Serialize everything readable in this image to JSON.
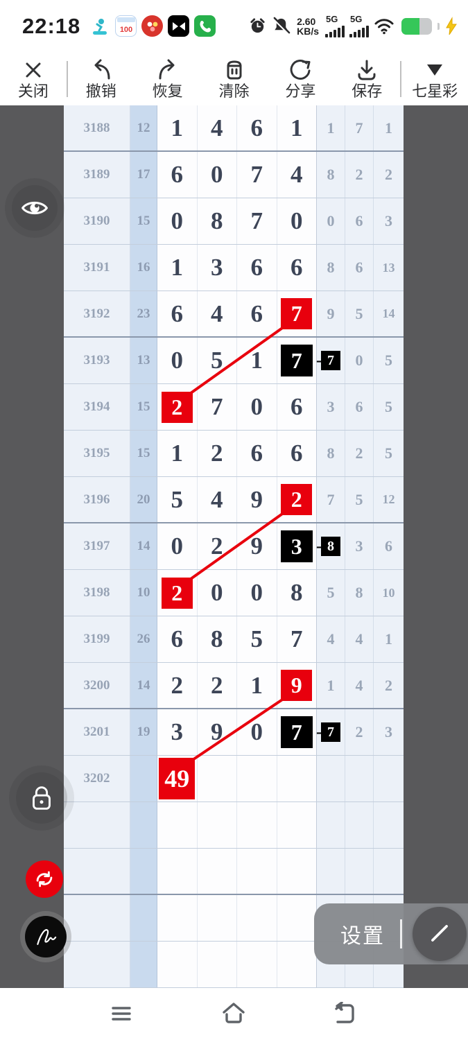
{
  "status_bar": {
    "time": "22:18",
    "speed_value": "2.60",
    "speed_unit": "KB/s",
    "net1": "5G",
    "net2": "5G",
    "notification_icons": [
      "diving-app-icon",
      "calendar-100-icon",
      "red-social-app-icon",
      "capcut-icon",
      "phone-app-icon"
    ],
    "system_icons": [
      "alarm-icon",
      "mute-icon",
      "wifi-icon",
      "battery-icon",
      "charging-bolt-icon"
    ]
  },
  "toolbar": {
    "close": "关闭",
    "undo": "撤销",
    "redo": "恢复",
    "clear": "清除",
    "share": "分享",
    "save": "保存",
    "lottery": "七星彩"
  },
  "floating": {
    "settings_label": "设置"
  },
  "colors": {
    "accent_red": "#e8000d",
    "highlight_black": "#000000",
    "surround_grey": "#59595b",
    "col_blue_light": "#ecf1f8",
    "col_blue_mid": "#c9daee",
    "digit_dark": "#3d4557",
    "digit_grey": "#9aa6b7"
  },
  "table": {
    "group_ends": [
      0,
      4,
      8,
      12,
      16
    ],
    "rows": [
      {
        "period": "3188",
        "sum": "12",
        "main": [
          "1",
          "4",
          "6",
          "1"
        ],
        "right": [
          "1",
          "7",
          "1"
        ]
      },
      {
        "period": "3189",
        "sum": "17",
        "main": [
          "6",
          "0",
          "7",
          "4"
        ],
        "right": [
          "8",
          "2",
          "2"
        ]
      },
      {
        "period": "3190",
        "sum": "15",
        "main": [
          "0",
          "8",
          "7",
          "0"
        ],
        "right": [
          "0",
          "6",
          "3"
        ]
      },
      {
        "period": "3191",
        "sum": "16",
        "main": [
          "1",
          "3",
          "6",
          "6"
        ],
        "right": [
          "8",
          "6",
          "13"
        ]
      },
      {
        "period": "3192",
        "sum": "23",
        "main": [
          "6",
          "4",
          "6",
          {
            "v": "7",
            "hl": "red"
          }
        ],
        "right": [
          "9",
          "5",
          "14"
        ]
      },
      {
        "period": "3193",
        "sum": "13",
        "main": [
          "0",
          "5",
          "1",
          {
            "v": "7",
            "hl": "black",
            "joiner": "-"
          }
        ],
        "right": [
          {
            "v": "7",
            "hl": "black-small"
          },
          "0",
          "5"
        ]
      },
      {
        "period": "3194",
        "sum": "15",
        "main": [
          {
            "v": "2",
            "hl": "red"
          },
          "7",
          "0",
          "6"
        ],
        "right": [
          "3",
          "6",
          "5"
        ]
      },
      {
        "period": "3195",
        "sum": "15",
        "main": [
          "1",
          "2",
          "6",
          "6"
        ],
        "right": [
          "8",
          "2",
          "5"
        ]
      },
      {
        "period": "3196",
        "sum": "20",
        "main": [
          "5",
          "4",
          "9",
          {
            "v": "2",
            "hl": "red"
          }
        ],
        "right": [
          "7",
          "5",
          "12"
        ]
      },
      {
        "period": "3197",
        "sum": "14",
        "main": [
          "0",
          "2",
          "9",
          {
            "v": "3",
            "hl": "black",
            "joiner": "-"
          }
        ],
        "right": [
          {
            "v": "8",
            "hl": "black-small"
          },
          "3",
          "6"
        ]
      },
      {
        "period": "3198",
        "sum": "10",
        "main": [
          {
            "v": "2",
            "hl": "red"
          },
          "0",
          "0",
          "8"
        ],
        "right": [
          "5",
          "8",
          "10"
        ]
      },
      {
        "period": "3199",
        "sum": "26",
        "main": [
          "6",
          "8",
          "5",
          "7"
        ],
        "right": [
          "4",
          "4",
          "1"
        ]
      },
      {
        "period": "3200",
        "sum": "14",
        "main": [
          "2",
          "2",
          "1",
          {
            "v": "9",
            "hl": "red"
          }
        ],
        "right": [
          "1",
          "4",
          "2"
        ]
      },
      {
        "period": "3201",
        "sum": "19",
        "main": [
          "3",
          "9",
          "0",
          {
            "v": "7",
            "hl": "black",
            "joiner": "-"
          }
        ],
        "right": [
          {
            "v": "7",
            "hl": "black-small"
          },
          "2",
          "3"
        ]
      },
      {
        "period": "3202",
        "sum": "",
        "main": [
          {
            "v": "49",
            "hl": "red wide"
          },
          "",
          "",
          ""
        ],
        "right": [
          "",
          "",
          ""
        ]
      },
      {
        "period": "",
        "sum": "",
        "main": [
          "",
          "",
          "",
          ""
        ],
        "right": [
          "",
          "",
          ""
        ]
      },
      {
        "period": "",
        "sum": "",
        "main": [
          "",
          "",
          "",
          ""
        ],
        "right": [
          "",
          "",
          ""
        ]
      },
      {
        "period": "",
        "sum": "",
        "main": [
          "",
          "",
          "",
          ""
        ],
        "right": [
          "",
          "",
          ""
        ]
      },
      {
        "period": "",
        "sum": "",
        "main": [
          "",
          "",
          "",
          ""
        ],
        "right": [
          "",
          "",
          ""
        ]
      }
    ],
    "connections": [
      {
        "from_row": 4,
        "from_col": 3,
        "to_row": 6,
        "to_col": 0
      },
      {
        "from_row": 8,
        "from_col": 3,
        "to_row": 10,
        "to_col": 0
      },
      {
        "from_row": 12,
        "from_col": 3,
        "to_row": 14,
        "to_col": 0
      }
    ]
  }
}
